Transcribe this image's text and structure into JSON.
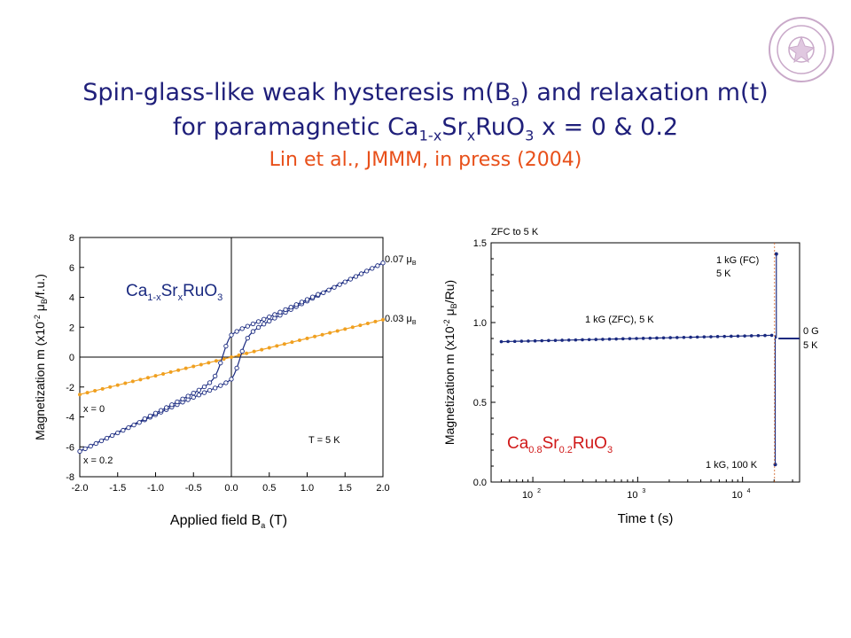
{
  "slide": {
    "title_line1_a": "Spin-glass-like weak hysteresis m(B",
    "title_line1_sub": "a",
    "title_line1_b": ") and relaxation m(t)",
    "title_line2_a": "for paramagnetic Ca",
    "title_line2_sub1": "1-x",
    "title_line2_b": "Sr",
    "title_line2_sub2": "x",
    "title_line2_c": "RuO",
    "title_line2_sub3": "3",
    "title_line2_d": " x = 0 & 0.2",
    "citation": "Lin et al., JMMM, in press (2004)",
    "seal_icon": "university-seal-icon",
    "colors": {
      "title": "#1f1f7a",
      "citation": "#e8501a",
      "series_x0": "#f0a020",
      "series_x02": "#1a2a80"
    }
  },
  "chart_data": [
    {
      "type": "scatter",
      "xlabel_main": "Applied field  B",
      "xlabel_sub": "a",
      "xlabel_unit": " (T)",
      "ylabel": "Magnetization  m  (x10",
      "ylabel_sup": "-2",
      "ylabel_rest": " μ",
      "ylabel_sub": "B",
      "ylabel_end": "/f.u.)",
      "xlim": [
        -2.0,
        2.0
      ],
      "ylim": [
        -8,
        8
      ],
      "xticks": [
        "-2.0",
        "-1.5",
        "-1.0",
        "-0.5",
        "0.0",
        "0.5",
        "1.0",
        "1.5",
        "2.0"
      ],
      "yticks": [
        "-8",
        "-6",
        "-4",
        "-2",
        "0",
        "2",
        "4",
        "6",
        "8"
      ],
      "compound_label": "Ca",
      "compound_sub1": "1-x",
      "compound_mid": "Sr",
      "compound_sub2": "x",
      "compound_end": "RuO",
      "compound_sub3": "3",
      "annotations": {
        "x0": "x = 0",
        "x02": "x = 0.2",
        "temp": "T = 5 K",
        "slope_high": "0.07 μ",
        "slope_high_sub": "B",
        "slope_low": "0.03 μ",
        "slope_low_sub": "B"
      },
      "series": [
        {
          "name": "x = 0",
          "slope": 1.25,
          "x_range": [
            -2.0,
            2.0
          ]
        },
        {
          "name": "x = 0.2",
          "slope_high": 3.6,
          "offset_high": 0.0,
          "x_range": [
            -2.0,
            2.0
          ],
          "loop_width": 0.15
        }
      ]
    },
    {
      "type": "line",
      "xscale": "log",
      "xlabel": "Time  t (s)",
      "ylabel": "Magnetization  m  (x10",
      "ylabel_sup": "-2",
      "ylabel_rest": " μ",
      "ylabel_sub": "B",
      "ylabel_end": "/Ru)",
      "xlim": [
        40,
        35000
      ],
      "ylim": [
        0.0,
        1.5
      ],
      "xticks": [
        "10",
        "10",
        "10"
      ],
      "xtick_exps": [
        "2",
        "3",
        "4"
      ],
      "yticks": [
        "0.0",
        "0.5",
        "1.0",
        "1.5"
      ],
      "compound_label": "Ca",
      "compound_sub1": "0.8",
      "compound_mid": "Sr",
      "compound_sub2": "0.2",
      "compound_end": "RuO",
      "compound_sub3": "3",
      "annotations": {
        "zfc": "ZFC to 5 K",
        "fc_line1": "1 kG (FC)",
        "fc_line2": "5 K",
        "zfc_field": "1 kG (ZFC), 5 K",
        "zero_line1": "0 G",
        "zero_line2": "5 K",
        "hot": "1 kG, 100 K"
      },
      "series": [
        {
          "name": "1 kG (ZFC), 5 K",
          "t_range": [
            50,
            19000
          ],
          "m_start": 0.88,
          "m_end": 0.92
        },
        {
          "name": "1 kG (FC) 5 K spike",
          "t": 21000,
          "m": 1.43
        },
        {
          "name": "1 kG, 100 K",
          "t": 20500,
          "m": 0.11
        },
        {
          "name": "0 G 5 K",
          "t_range": [
            22000,
            35000
          ],
          "m": 0.9
        }
      ]
    }
  ]
}
